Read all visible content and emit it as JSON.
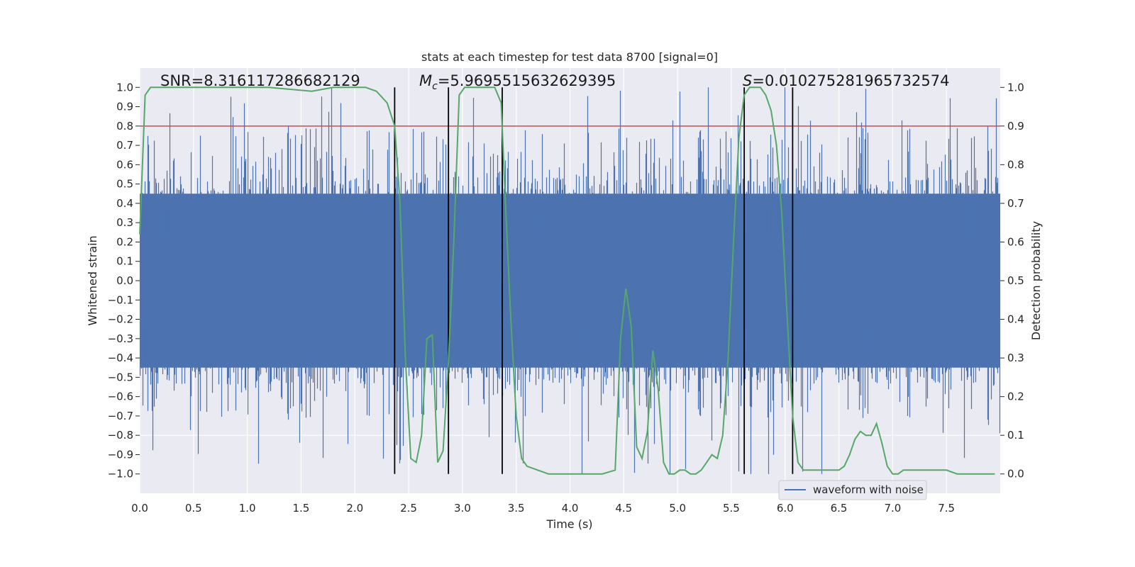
{
  "chart_data": {
    "type": "line",
    "title": "stats at each timestep for test data 8700 [signal=0]",
    "xlabel": "Time (s)",
    "ylabel": "Whitened strain",
    "y2label": "Detection probability",
    "xlim": [
      0.0,
      8.0
    ],
    "ylim": [
      -1.1,
      1.1
    ],
    "y2lim": [
      -0.05,
      1.05
    ],
    "xticks": [
      "0.0",
      "0.5",
      "1.0",
      "1.5",
      "2.0",
      "2.5",
      "3.0",
      "3.5",
      "4.0",
      "4.5",
      "5.0",
      "5.5",
      "6.0",
      "6.5",
      "7.0",
      "7.5"
    ],
    "yticks": [
      "1.0",
      "0.9",
      "0.8",
      "0.7",
      "0.6",
      "0.5",
      "0.4",
      "0.3",
      "0.2",
      "0.1",
      "0.0",
      "-0.1",
      "-0.2",
      "-0.3",
      "-0.4",
      "-0.5",
      "-0.6",
      "-0.7",
      "-0.8",
      "-0.9",
      "-1.0"
    ],
    "y2ticks": [
      "1.0",
      "0.9",
      "0.8",
      "0.7",
      "0.6",
      "0.5",
      "0.4",
      "0.3",
      "0.2",
      "0.1",
      "0.0"
    ],
    "threshold": 0.8,
    "event_lines": [
      2.37,
      2.87,
      3.37,
      5.62,
      6.07
    ],
    "annotations": {
      "snr": "SNR=8.316117286682129",
      "mc_prefix": "M",
      "mc_sub": "c",
      "mc_value": "=5.9695515632629395",
      "s_prefix": "S",
      "s_value": "=0.010275281965732574"
    },
    "legend": "waveform with noise",
    "series": [
      {
        "name": "waveform with noise",
        "kind": "noise",
        "typical_amplitude": 0.45,
        "max_amplitude": 1.0,
        "color": "#4c72b0"
      },
      {
        "name": "detection probability",
        "axis": "right",
        "color": "#55a868",
        "x": [
          0.0,
          0.05,
          0.1,
          0.2,
          0.4,
          0.8,
          1.2,
          1.6,
          1.8,
          2.0,
          2.1,
          2.2,
          2.3,
          2.37,
          2.42,
          2.47,
          2.52,
          2.57,
          2.62,
          2.67,
          2.72,
          2.77,
          2.82,
          2.87,
          2.92,
          2.97,
          3.02,
          3.1,
          3.2,
          3.3,
          3.36,
          3.4,
          3.45,
          3.5,
          3.55,
          3.6,
          3.7,
          3.8,
          4.0,
          4.2,
          4.3,
          4.42,
          4.47,
          4.52,
          4.57,
          4.62,
          4.67,
          4.72,
          4.77,
          4.82,
          4.87,
          4.92,
          4.97,
          5.02,
          5.07,
          5.12,
          5.17,
          5.22,
          5.27,
          5.32,
          5.37,
          5.42,
          5.47,
          5.52,
          5.57,
          5.62,
          5.67,
          5.72,
          5.77,
          5.82,
          5.87,
          5.92,
          5.97,
          6.02,
          6.07,
          6.12,
          6.17,
          6.22,
          6.3,
          6.5,
          6.55,
          6.6,
          6.65,
          6.7,
          6.75,
          6.8,
          6.85,
          6.9,
          6.95,
          7.0,
          7.05,
          7.1,
          7.15,
          7.2,
          7.3,
          7.4,
          7.5,
          7.6,
          7.7,
          7.8,
          7.95
        ],
        "y": [
          0.62,
          0.98,
          1.0,
          1.0,
          1.0,
          1.0,
          1.0,
          0.99,
          1.0,
          1.0,
          1.0,
          0.99,
          0.96,
          0.9,
          0.7,
          0.3,
          0.04,
          0.03,
          0.1,
          0.35,
          0.36,
          0.03,
          0.06,
          0.29,
          0.6,
          0.98,
          1.0,
          1.0,
          1.0,
          1.0,
          0.96,
          0.7,
          0.4,
          0.15,
          0.04,
          0.02,
          0.01,
          0.0,
          0.0,
          0.0,
          0.0,
          0.01,
          0.35,
          0.48,
          0.38,
          0.07,
          0.04,
          0.11,
          0.32,
          0.22,
          0.03,
          0.0,
          0.0,
          0.01,
          0.01,
          0.0,
          0.0,
          0.01,
          0.03,
          0.05,
          0.04,
          0.1,
          0.3,
          0.6,
          0.87,
          0.98,
          1.0,
          1.0,
          1.0,
          0.98,
          0.94,
          0.85,
          0.67,
          0.4,
          0.15,
          0.03,
          0.01,
          0.01,
          0.01,
          0.01,
          0.02,
          0.05,
          0.09,
          0.11,
          0.1,
          0.1,
          0.13,
          0.08,
          0.02,
          0.0,
          0.0,
          0.01,
          0.01,
          0.01,
          0.01,
          0.01,
          0.01,
          0.0,
          0.0,
          0.0,
          0.0
        ]
      }
    ]
  }
}
